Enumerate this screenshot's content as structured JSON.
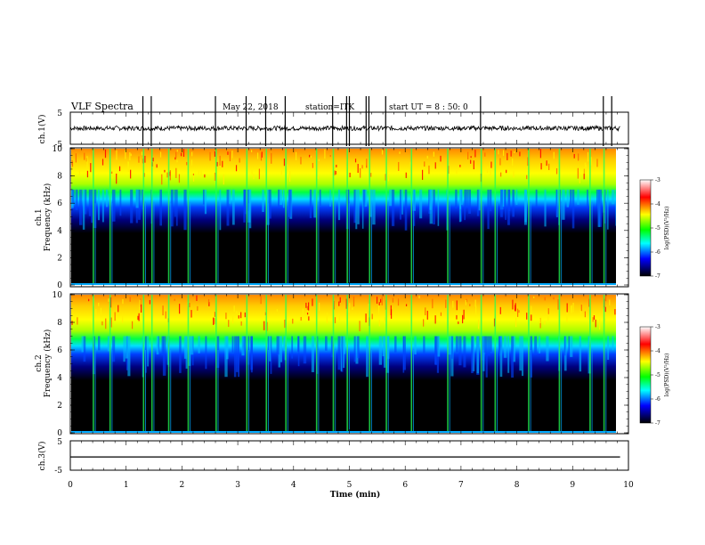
{
  "header": {
    "title": "VLF Spectra",
    "date": "May 22, 2018",
    "station": "station=ITK",
    "start": "start  UT =   8 : 50: 0"
  },
  "colorbar": {
    "label": "log(PSD)(V²/Hz)",
    "ticks": [
      "-3",
      "-4",
      "-5",
      "-6",
      "-7"
    ],
    "stops": [
      "#ffffff",
      "#ff0000",
      "#ffff00",
      "#00ff00",
      "#00ffff",
      "#0000ff",
      "#000000"
    ]
  },
  "chart_data": [
    {
      "type": "line",
      "name": "ch.1 time series",
      "ylabel": "ch.1(V)",
      "yticks": [
        "5",
        "-5"
      ],
      "ylim": [
        -5,
        5
      ],
      "x_range_min": [
        0,
        9.85
      ],
      "baseline_v": 0,
      "spikes_min": [
        1.3,
        1.45,
        2.6,
        3.15,
        3.5,
        3.85,
        4.7,
        4.95,
        5.0,
        5.3,
        5.35,
        5.65,
        7.35,
        9.55,
        9.7
      ]
    },
    {
      "type": "heatmap",
      "name": "ch.1 spectrogram",
      "ylabel": "ch.1\nFrequency (kHz)",
      "yticks": [
        "0",
        "2",
        "4",
        "6",
        "8",
        "10"
      ],
      "ylim": [
        0,
        10
      ],
      "xlim": [
        0,
        9.85
      ],
      "description_of_values": "log PSD from about -7 (black) at low frequency to about -3 (red) near 8-10 kHz; transition band near 6 kHz",
      "vertical_bursts_min": [
        0.4,
        0.7,
        1.3,
        1.45,
        1.75,
        2.1,
        2.6,
        3.15,
        3.5,
        3.85,
        4.4,
        4.7,
        4.95,
        5.35,
        5.65,
        6.1,
        6.75,
        7.35,
        7.6,
        8.2,
        8.75,
        9.3,
        9.55
      ]
    },
    {
      "type": "heatmap",
      "name": "ch.2 spectrogram",
      "ylabel": "ch.2\nFrequency (kHz)",
      "yticks": [
        "0",
        "2",
        "4",
        "6",
        "8",
        "10"
      ],
      "ylim": [
        0,
        10
      ],
      "xlim": [
        0,
        9.85
      ],
      "description_of_values": "log PSD from about -7 (black) at low frequency to about -3 (red) near 8-10 kHz; transition band near 6 kHz",
      "vertical_bursts_min": [
        0.4,
        0.7,
        1.3,
        1.45,
        1.75,
        2.1,
        2.6,
        3.15,
        3.5,
        3.85,
        4.4,
        4.7,
        4.95,
        5.35,
        5.65,
        6.1,
        6.75,
        7.35,
        7.6,
        8.2,
        8.75,
        9.3,
        9.55
      ]
    },
    {
      "type": "line",
      "name": "ch.3 time series",
      "ylabel": "ch.3(V)",
      "yticks": [
        "5",
        "-5"
      ],
      "ylim": [
        -5,
        5
      ],
      "x_range_min": [
        0,
        9.85
      ],
      "baseline_v": -0.5
    }
  ],
  "xaxis": {
    "label": "Time (min)",
    "ticks": [
      "0",
      "1",
      "2",
      "3",
      "4",
      "5",
      "6",
      "7",
      "8",
      "9",
      "10"
    ],
    "xlim": [
      0,
      10
    ]
  }
}
